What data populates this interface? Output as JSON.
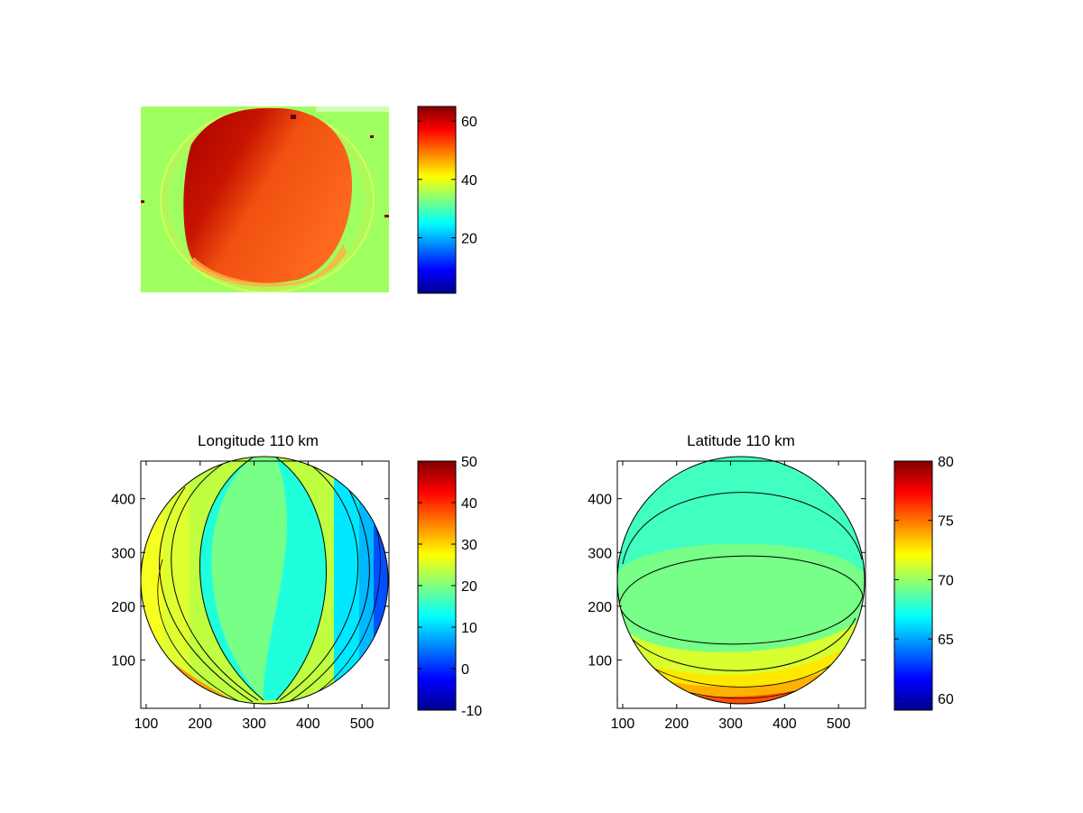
{
  "chart_data": [
    {
      "type": "heatmap",
      "title": "",
      "description_values": "camera image, roughly uniform background ~37 with bright disk ~50-60",
      "colorbar": {
        "colormap": "jet",
        "range": [
          1,
          65
        ],
        "ticks": [
          "20",
          "40",
          "60"
        ]
      },
      "x_ticks": [],
      "y_ticks": []
    },
    {
      "type": "heatmap",
      "title": "Longitude 110 km",
      "xlim": [
        90,
        550
      ],
      "ylim": [
        10,
        470
      ],
      "x_ticks": [
        "100",
        "200",
        "300",
        "400",
        "500"
      ],
      "y_ticks": [
        "100",
        "200",
        "300",
        "400"
      ],
      "colorbar": {
        "colormap": "jet",
        "range": [
          -10,
          50
        ],
        "ticks": [
          "-10",
          "0",
          "10",
          "20",
          "30",
          "40",
          "50"
        ]
      }
    },
    {
      "type": "heatmap",
      "title": "Latitude 110 km",
      "xlim": [
        90,
        550
      ],
      "ylim": [
        10,
        470
      ],
      "x_ticks": [
        "100",
        "200",
        "300",
        "400",
        "500"
      ],
      "y_ticks": [
        "100",
        "200",
        "300",
        "400"
      ],
      "colorbar": {
        "colormap": "jet",
        "range": [
          59,
          80
        ],
        "ticks": [
          "60",
          "65",
          "70",
          "75",
          "80"
        ]
      }
    }
  ]
}
